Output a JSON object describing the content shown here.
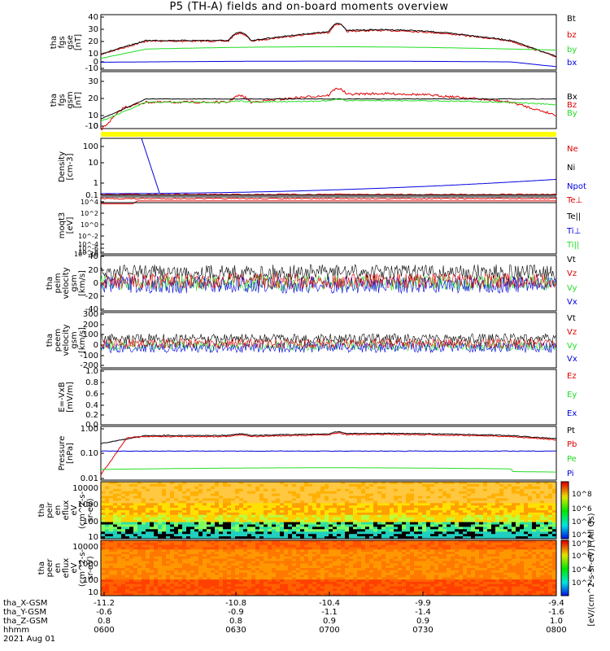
{
  "title": "P5 (TH-A) fields and on-board moments overview",
  "colors": {
    "black": "#000000",
    "red": "#dd0000",
    "green": "#22dd22",
    "blue": "#0000dd",
    "yellow": "#ffff00"
  },
  "chart_data": [
    {
      "id": "fgs_gse",
      "type": "line",
      "ylabel": [
        "tha",
        "fgs",
        "gse",
        "[nT]"
      ],
      "yticks": [
        "40",
        "30",
        "20",
        "10",
        "0",
        "-10"
      ],
      "ylim": [
        -10,
        40
      ],
      "series": [
        {
          "name": "Bt",
          "color": "black"
        },
        {
          "name": "bz",
          "color": "red"
        },
        {
          "name": "by",
          "color": "green"
        },
        {
          "name": "bx",
          "color": "blue"
        }
      ]
    },
    {
      "id": "fgs_gsm",
      "type": "line",
      "ylabel": [
        "tha",
        "fgs",
        "gsm",
        "[nT]"
      ],
      "yticks": [
        "30",
        "20",
        "10",
        "0",
        "-10"
      ],
      "ylim": [
        -17,
        37
      ],
      "series": [
        {
          "name": "Bx",
          "color": "black"
        },
        {
          "name": "Bz",
          "color": "red"
        },
        {
          "name": "By",
          "color": "green"
        }
      ]
    },
    {
      "id": "density",
      "type": "line",
      "ylabel": [
        "Density",
        "[cm-3]"
      ],
      "yticks": [
        "100",
        "10",
        "1",
        "0.1"
      ],
      "ylim": [
        0.01,
        1000
      ],
      "log": true,
      "series": [
        {
          "name": "Ne",
          "color": "red"
        },
        {
          "name": "Ni",
          "color": "black"
        },
        {
          "name": "Npot",
          "color": "blue"
        }
      ]
    },
    {
      "id": "temperature",
      "type": "line",
      "ylabel": [
        "moqt3",
        "[eV]"
      ],
      "yticks": [
        "10^4",
        "10^2",
        "10^0",
        "10^-2",
        "10^-4",
        "10^-6",
        "10^-8",
        "10^-10"
      ],
      "log": true,
      "series": [
        {
          "name": "Te⊥",
          "color": "red"
        },
        {
          "name": "Te||",
          "color": "black"
        },
        {
          "name": "Ti⊥",
          "color": "blue"
        },
        {
          "name": "Ti||",
          "color": "green"
        }
      ]
    },
    {
      "id": "peim_velocity",
      "type": "line",
      "ylabel": [
        "tha",
        "peim",
        "velocity",
        "gsm",
        "[km/s]"
      ],
      "yticks": [
        "40",
        "20",
        "0",
        "-20",
        "-40"
      ],
      "ylim": [
        -40,
        40
      ],
      "series": [
        {
          "name": "Vt",
          "color": "black"
        },
        {
          "name": "Vz",
          "color": "red"
        },
        {
          "name": "Vy",
          "color": "green"
        },
        {
          "name": "Vx",
          "color": "blue"
        }
      ]
    },
    {
      "id": "peem_velocity",
      "type": "line",
      "ylabel": [
        "tha",
        "peem",
        "velocity",
        "gsm",
        "[km/s]"
      ],
      "yticks": [
        "300",
        "200",
        "100",
        "0",
        "-100",
        "-200"
      ],
      "ylim": [
        -200,
        300
      ],
      "series": [
        {
          "name": "Vt",
          "color": "black"
        },
        {
          "name": "Vz",
          "color": "red"
        },
        {
          "name": "Vy",
          "color": "green"
        },
        {
          "name": "Vx",
          "color": "blue"
        }
      ]
    },
    {
      "id": "efield",
      "type": "line",
      "ylabel": [
        "E=-VxB",
        "[mV/m]"
      ],
      "yticks": [
        "1.0",
        "0.8",
        "0.6",
        "0.4",
        "0.2",
        "0.0"
      ],
      "ylim": [
        0,
        1
      ],
      "series": [
        {
          "name": "Ez",
          "color": "red"
        },
        {
          "name": "Ey",
          "color": "green"
        },
        {
          "name": "Ex",
          "color": "blue"
        }
      ]
    },
    {
      "id": "pressure",
      "type": "line",
      "ylabel": [
        "Pressure",
        "[nPa]"
      ],
      "yticks": [
        "1.00",
        "0.10",
        "0.01"
      ],
      "ylim": [
        0.01,
        1.5
      ],
      "log": true,
      "series": [
        {
          "name": "Pt",
          "color": "black"
        },
        {
          "name": "Pb",
          "color": "red"
        },
        {
          "name": "Pe",
          "color": "green"
        },
        {
          "name": "Pi",
          "color": "blue"
        }
      ]
    },
    {
      "id": "peir_spec",
      "type": "heatmap",
      "ylabel": [
        "tha",
        "peir",
        "en",
        "eflux",
        "eV",
        "(cm^2-s-",
        "sr-eV)"
      ],
      "yticks": [
        "10000",
        "1000",
        "100",
        "10"
      ]
    },
    {
      "id": "peer_spec",
      "type": "heatmap",
      "ylabel": [
        "tha",
        "peer",
        "en",
        "eflux",
        "eV",
        "(cm^2-s-",
        "sr-eV)"
      ],
      "yticks": [
        "10000",
        "1000",
        "100",
        "10"
      ]
    }
  ],
  "colorbar": {
    "ticks": [
      "10^8",
      "10^6",
      "10^4",
      "10^2",
      "10^8",
      "10^6",
      "10^4",
      "10^2"
    ],
    "label": "[eV/(cm^2-s-sr-eV)] (All Qs)"
  },
  "xaxis": {
    "rows": [
      {
        "label": "tha_X-GSM",
        "values": [
          "-11.2",
          "-10.8",
          "-10.4",
          "-9.9",
          "-9.4"
        ]
      },
      {
        "label": "tha_Y-GSM",
        "values": [
          "-0.6",
          "-0.9",
          "-1.1",
          "-1.4",
          "-1.6"
        ]
      },
      {
        "label": "tha_Z-GSM",
        "values": [
          "0.8",
          "0.8",
          "0.9",
          "0.9",
          "1.0"
        ]
      },
      {
        "label": "hhmm",
        "values": [
          "0600",
          "0630",
          "0700",
          "0730",
          "0800"
        ]
      }
    ],
    "date": "2021 Aug 01"
  }
}
